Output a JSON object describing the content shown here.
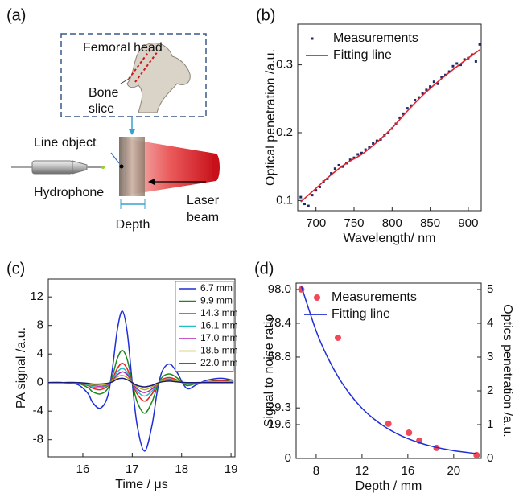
{
  "diagram": {
    "label": "(a)",
    "femoral_head": "Femoral head",
    "bone_slice": [
      "Bone",
      "slice"
    ],
    "line_object": "Line object",
    "hydrophone": "Hydrophone",
    "depth": "Depth",
    "laser_beam": [
      "Laser",
      "beam"
    ]
  },
  "chart_data": [
    {
      "type": "line",
      "label": "(b)",
      "x_label": "Wavelength/ nm",
      "y_label": "Optical penetration /a.u.",
      "xlim": [
        676,
        917
      ],
      "ylim": [
        0.085,
        0.36
      ],
      "xticks": [
        700,
        750,
        800,
        850,
        900
      ],
      "yticks": [
        0.1,
        0.2,
        0.3
      ],
      "legend": "upper left",
      "series": [
        {
          "name": "Measurements",
          "color": "#1a2a6c",
          "mode": "markers",
          "x": [
            680,
            685,
            690,
            695,
            700,
            705,
            710,
            715,
            720,
            725,
            730,
            735,
            740,
            745,
            750,
            755,
            760,
            765,
            770,
            775,
            780,
            785,
            790,
            795,
            800,
            805,
            810,
            815,
            820,
            825,
            830,
            835,
            840,
            845,
            850,
            855,
            860,
            865,
            870,
            875,
            880,
            885,
            890,
            895,
            900,
            905,
            910,
            915
          ],
          "values": [
            0.105,
            0.095,
            0.092,
            0.108,
            0.115,
            0.12,
            0.128,
            0.132,
            0.14,
            0.147,
            0.152,
            0.15,
            0.155,
            0.16,
            0.163,
            0.168,
            0.17,
            0.175,
            0.178,
            0.184,
            0.188,
            0.19,
            0.196,
            0.2,
            0.206,
            0.213,
            0.222,
            0.228,
            0.236,
            0.24,
            0.248,
            0.252,
            0.258,
            0.263,
            0.268,
            0.275,
            0.272,
            0.282,
            0.285,
            0.29,
            0.298,
            0.302,
            0.3,
            0.308,
            0.31,
            0.315,
            0.305,
            0.33
          ]
        },
        {
          "name": "Fitting line",
          "color": "#e0232b",
          "mode": "line",
          "x": [
            680,
            700,
            720,
            740,
            760,
            780,
            800,
            820,
            840,
            860,
            880,
            900,
            915
          ],
          "values": [
            0.098,
            0.118,
            0.138,
            0.155,
            0.168,
            0.186,
            0.207,
            0.232,
            0.255,
            0.275,
            0.293,
            0.31,
            0.322
          ]
        }
      ]
    },
    {
      "type": "line",
      "label": "(c)",
      "x_label": "Time / μs",
      "y_label": "PA signal /a.u.",
      "xlim": [
        15.3,
        19.08
      ],
      "ylim": [
        -10.4,
        14.5
      ],
      "xticks": [
        16,
        17,
        18,
        19
      ],
      "yticks": [
        -8,
        -4,
        0,
        4,
        8,
        12
      ],
      "legend": "upper right",
      "x": [
        15.3,
        15.6,
        15.9,
        16.1,
        16.2,
        16.35,
        16.5,
        16.6,
        16.7,
        16.8,
        16.9,
        17.0,
        17.1,
        17.25,
        17.4,
        17.5,
        17.6,
        17.75,
        17.9,
        18.1,
        18.3,
        18.5,
        18.8,
        19.05
      ],
      "series": [
        {
          "name": "6.7  mm",
          "color": "#1f2fd6",
          "mode": "line",
          "values": [
            0,
            0,
            -0.3,
            -1.5,
            -2.8,
            -3.6,
            -2,
            2,
            7.5,
            10,
            7,
            0,
            -6,
            -9.6,
            -6,
            -1.5,
            1.5,
            2.6,
            1.5,
            -0.8,
            -0.3,
            0.3,
            0.6,
            0.3
          ]
        },
        {
          "name": "9.9  mm",
          "color": "#1a8a1a",
          "mode": "line",
          "values": [
            0,
            0,
            -0.1,
            -0.7,
            -1.3,
            -1.6,
            -0.9,
            0.9,
            3.4,
            4.5,
            3.2,
            0,
            -2.7,
            -4.3,
            -2.7,
            -0.7,
            0.7,
            1.2,
            0.7,
            -0.4,
            -0.1,
            0.1,
            0.3,
            0.1
          ]
        },
        {
          "name": "14.3 mm",
          "color": "#e8201e",
          "mode": "line",
          "values": [
            0,
            0,
            -0.1,
            -0.4,
            -0.8,
            -1,
            -0.5,
            0.5,
            2,
            2.7,
            1.9,
            0,
            -1.6,
            -2.6,
            -1.6,
            -0.4,
            0.4,
            0.7,
            0.4,
            -0.2,
            -0.1,
            0.1,
            0.2,
            0.1
          ]
        },
        {
          "name": "16.1 mm",
          "color": "#20c0c8",
          "mode": "line",
          "values": [
            0,
            0,
            -0.1,
            -0.3,
            -0.6,
            -0.7,
            -0.4,
            0.4,
            1.5,
            2,
            1.4,
            0,
            -1.2,
            -1.9,
            -1.2,
            -0.3,
            0.3,
            0.5,
            0.3,
            -0.2,
            -0.1,
            0.1,
            0.1,
            0.1
          ]
        },
        {
          "name": "17.0 mm",
          "color": "#b020b0",
          "mode": "line",
          "values": [
            0,
            0,
            0,
            -0.2,
            -0.4,
            -0.5,
            -0.3,
            0.3,
            1.1,
            1.5,
            1.1,
            0,
            -0.9,
            -1.4,
            -0.9,
            -0.2,
            0.2,
            0.4,
            0.2,
            -0.1,
            0,
            0,
            0.1,
            0
          ]
        },
        {
          "name": "18.5 mm",
          "color": "#b8b020",
          "mode": "line",
          "values": [
            0,
            0,
            0,
            -0.2,
            -0.3,
            -0.4,
            -0.2,
            0.2,
            0.8,
            1,
            0.7,
            0,
            -0.6,
            -1,
            -0.6,
            -0.2,
            0.2,
            0.3,
            0.2,
            -0.1,
            0,
            0,
            0.1,
            0
          ]
        },
        {
          "name": "22.0 mm",
          "color": "#1a1a7a",
          "mode": "line",
          "values": [
            0,
            0,
            0,
            -0.1,
            -0.2,
            -0.2,
            -0.1,
            0.1,
            0.5,
            0.6,
            0.4,
            0,
            -0.4,
            -0.6,
            -0.4,
            -0.1,
            0.1,
            0.2,
            0.1,
            0,
            0,
            0,
            0,
            0
          ]
        }
      ]
    },
    {
      "type": "line",
      "label": "(d)",
      "x_label": "Depth / mm",
      "y_label": "Signal to noise ratio",
      "y2_label": "Optics penetration /a.u.",
      "xlim": [
        6.25,
        22.4
      ],
      "ylim": [
        0,
        101.7
      ],
      "y2lim": [
        0,
        5.19
      ],
      "xticks": [
        8,
        12,
        16,
        20
      ],
      "yticks": [
        0,
        19.6,
        29.3,
        58.8,
        78.4,
        {
          "value": 98,
          "label": "98.0"
        }
      ],
      "y2ticks": [
        0,
        1,
        2,
        3,
        4,
        5
      ],
      "legend": "upper left",
      "series": [
        {
          "name": "Measurements",
          "color": "#f04a5a",
          "mode": "markers",
          "x": [
            6.7,
            9.9,
            14.3,
            16.1,
            17.0,
            18.5,
            22.0
          ],
          "values": [
            98,
            70,
            20.1,
            14.9,
            10.3,
            6.1,
            1.9
          ]
        },
        {
          "name": "Fitting line",
          "color": "#1f2fd6",
          "mode": "line",
          "x": [
            6.7,
            8,
            9,
            10,
            11,
            12,
            13,
            14,
            15,
            16,
            17,
            18,
            19,
            20,
            21,
            22
          ],
          "values": [
            100,
            73.9,
            58.6,
            46.4,
            36.8,
            29.1,
            23.1,
            18.3,
            14.5,
            11.5,
            9.1,
            7.2,
            5.7,
            4.5,
            3.6,
            2.8
          ]
        }
      ]
    }
  ]
}
